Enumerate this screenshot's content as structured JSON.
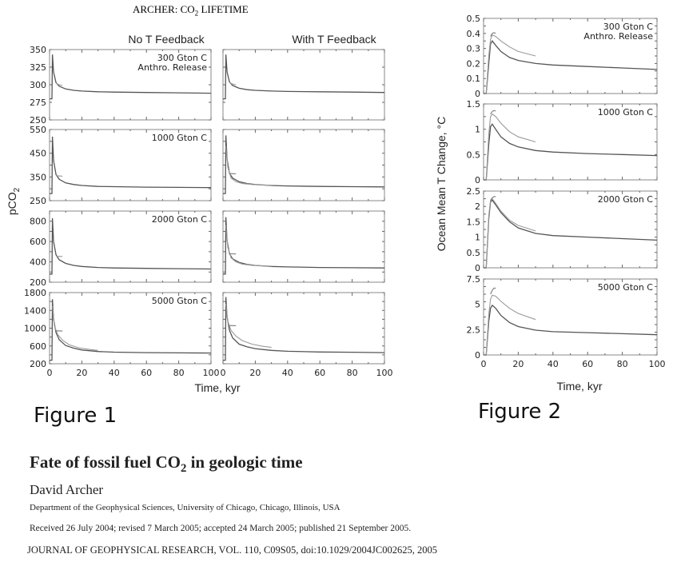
{
  "header": {
    "title_pre": "ARCHER: CO",
    "title_sub": "2",
    "title_post": " LIFETIME"
  },
  "figure1": {
    "label": "Figure 1",
    "col_titles": [
      "No T Feedback",
      "With T Feedback"
    ],
    "ylabel_pre": "pCO",
    "ylabel_sub": "2",
    "xlabel": "Time, kyr"
  },
  "figure2": {
    "label": "Figure 2",
    "ylabel": "Ocean Mean T Change, °C",
    "xlabel": "Time, kyr"
  },
  "chart_data": [
    {
      "type": "line",
      "title": "No T Feedback",
      "xlabel": "Time, kyr",
      "ylabel": "pCO2",
      "xlim": [
        0,
        100
      ],
      "xticks": [
        "0",
        "20",
        "40",
        "60",
        "80",
        "100"
      ],
      "panels": [
        {
          "label": [
            "300 Gton C",
            "Anthro. Release"
          ],
          "ylim": [
            250,
            350
          ],
          "yticks": [
            "250",
            "275",
            "300",
            "325",
            "350"
          ],
          "series": [
            {
              "x": [
                0,
                1.5,
                1.8,
                2.5,
                4,
                6,
                10,
                15,
                20,
                30,
                40,
                60,
                80,
                100
              ],
              "y": [
                280,
                280,
                343,
                318,
                303,
                298,
                294,
                292,
                291,
                290,
                289.5,
                289,
                288.5,
                288
              ]
            },
            {
              "x": [
                4,
                5,
                6,
                8
              ],
              "y": [
                302,
                301,
                300,
                299
              ]
            }
          ]
        },
        {
          "label": [
            "1000 Gton C"
          ],
          "ylim": [
            250,
            550
          ],
          "yticks": [
            "250",
            "350",
            "450",
            "550"
          ],
          "series": [
            {
              "x": [
                0,
                1.5,
                1.8,
                2.5,
                4,
                6,
                10,
                15,
                20,
                30,
                40,
                60,
                80,
                100
              ],
              "y": [
                280,
                280,
                520,
                420,
                360,
                340,
                325,
                318,
                314,
                310,
                309,
                307,
                306,
                305
              ]
            },
            {
              "x": [
                4,
                6,
                8
              ],
              "y": [
                355,
                354,
                353
              ]
            }
          ]
        },
        {
          "label": [
            "2000 Gton C"
          ],
          "ylim": [
            200,
            900
          ],
          "yticks": [
            "200",
            "400",
            "600",
            "800"
          ],
          "series": [
            {
              "x": [
                0,
                1.5,
                1.8,
                2.5,
                4,
                6,
                10,
                15,
                20,
                30,
                40,
                60,
                80,
                100
              ],
              "y": [
                280,
                280,
                830,
                600,
                470,
                420,
                385,
                365,
                355,
                345,
                340,
                336,
                333,
                330
              ]
            },
            {
              "x": [
                4,
                6,
                8
              ],
              "y": [
                455,
                454,
                453
              ]
            }
          ]
        },
        {
          "label": [
            "5000 Gton C"
          ],
          "ylim": [
            200,
            1800
          ],
          "yticks": [
            "200",
            "600",
            "1000",
            "1400",
            "1800"
          ],
          "series": [
            {
              "x": [
                0,
                1.5,
                1.8,
                2.5,
                4,
                6,
                10,
                15,
                20,
                30,
                40,
                60,
                80,
                100
              ],
              "y": [
                280,
                280,
                1650,
                1200,
                900,
                740,
                610,
                550,
                510,
                475,
                460,
                450,
                445,
                440
              ]
            },
            {
              "x": [
                1.8,
                3,
                5,
                8,
                12,
                18,
                25,
                30
              ],
              "y": [
                1500,
                1050,
                860,
                730,
                630,
                560,
                520,
                500
              ]
            },
            {
              "x": [
                4,
                6,
                8
              ],
              "y": [
                940,
                938,
                936
              ]
            }
          ]
        }
      ]
    },
    {
      "type": "line",
      "title": "With T Feedback",
      "xlabel": "Time, kyr",
      "xlim": [
        0,
        100
      ],
      "xticks": [
        "0",
        "20",
        "40",
        "60",
        "80",
        "100"
      ],
      "panels": [
        {
          "ylim": [
            250,
            350
          ],
          "series": [
            {
              "x": [
                0,
                1.5,
                1.8,
                2.5,
                4,
                6,
                10,
                15,
                20,
                30,
                40,
                60,
                80,
                100
              ],
              "y": [
                280,
                280,
                343,
                318,
                304,
                299,
                295,
                293,
                292,
                291,
                290.5,
                290,
                289.5,
                289
              ]
            },
            {
              "x": [
                4,
                5,
                6,
                8
              ],
              "y": [
                303,
                302,
                301,
                300
              ]
            }
          ]
        },
        {
          "ylim": [
            250,
            550
          ],
          "series": [
            {
              "x": [
                0,
                1.5,
                1.8,
                2.5,
                4,
                6,
                10,
                15,
                20,
                30,
                40,
                60,
                80,
                100
              ],
              "y": [
                280,
                280,
                525,
                425,
                365,
                345,
                330,
                322,
                318,
                314,
                312,
                310,
                309,
                308
              ]
            },
            {
              "x": [
                1.8,
                3,
                5,
                8,
                12,
                18,
                25,
                30
              ],
              "y": [
                480,
                390,
                345,
                330,
                322,
                318,
                316,
                315
              ]
            },
            {
              "x": [
                4,
                6,
                8
              ],
              "y": [
                365,
                364,
                363
              ]
            }
          ]
        },
        {
          "ylim": [
            200,
            900
          ],
          "series": [
            {
              "x": [
                0,
                1.5,
                1.8,
                2.5,
                4,
                6,
                10,
                15,
                20,
                30,
                40,
                60,
                80,
                100
              ],
              "y": [
                280,
                280,
                840,
                610,
                480,
                430,
                395,
                375,
                365,
                355,
                350,
                345,
                342,
                340
              ]
            },
            {
              "x": [
                1.8,
                3,
                5,
                8,
                12,
                18,
                25,
                30
              ],
              "y": [
                760,
                540,
                440,
                400,
                378,
                366,
                360,
                358
              ]
            },
            {
              "x": [
                4,
                6,
                8
              ],
              "y": [
                480,
                479,
                478
              ]
            }
          ]
        },
        {
          "ylim": [
            200,
            1800
          ],
          "series": [
            {
              "x": [
                0,
                1.5,
                1.8,
                2.5,
                4,
                6,
                10,
                15,
                20,
                30,
                40,
                60,
                80,
                100
              ],
              "y": [
                280,
                280,
                1700,
                1250,
                950,
                780,
                640,
                580,
                540,
                500,
                480,
                465,
                458,
                450
              ]
            },
            {
              "x": [
                1.8,
                3,
                5,
                8,
                12,
                18,
                25,
                30
              ],
              "y": [
                1550,
                1150,
                950,
                820,
                720,
                640,
                590,
                570
              ]
            },
            {
              "x": [
                4,
                6,
                8
              ],
              "y": [
                1060,
                1058,
                1056
              ]
            }
          ]
        }
      ]
    },
    {
      "type": "line",
      "xlabel": "Time, kyr",
      "ylabel": "Ocean Mean T Change, °C",
      "xlim": [
        0,
        100
      ],
      "xticks": [
        "0",
        "20",
        "40",
        "60",
        "80",
        "100"
      ],
      "panels": [
        {
          "label": [
            "300 Gton C",
            "Anthro. Release"
          ],
          "ylim": [
            0,
            0.5
          ],
          "yticks": [
            "0",
            "0.1",
            "0.2",
            "0.3",
            "0.4",
            "0.5"
          ],
          "series": [
            {
              "x": [
                0,
                1.5,
                3,
                4,
                5,
                7,
                10,
                15,
                20,
                30,
                40,
                60,
                80,
                100
              ],
              "y": [
                0,
                0,
                0.2,
                0.33,
                0.35,
                0.32,
                0.28,
                0.24,
                0.22,
                0.2,
                0.19,
                0.18,
                0.17,
                0.16
              ]
            },
            {
              "x": [
                1.5,
                3,
                4,
                5,
                7,
                10,
                15,
                20,
                30
              ],
              "y": [
                0,
                0.25,
                0.36,
                0.39,
                0.38,
                0.35,
                0.31,
                0.28,
                0.25
              ]
            },
            {
              "x": [
                4,
                5,
                6,
                7
              ],
              "y": [
                0.38,
                0.4,
                0.405,
                0.4
              ]
            }
          ]
        },
        {
          "label": [
            "1000 Gton C"
          ],
          "ylim": [
            0,
            1.5
          ],
          "yticks": [
            "0",
            "0.5",
            "1",
            "1.5"
          ],
          "series": [
            {
              "x": [
                0,
                1.5,
                3,
                4,
                5,
                7,
                10,
                15,
                20,
                30,
                40,
                60,
                80,
                100
              ],
              "y": [
                0,
                0,
                0.7,
                1.05,
                1.1,
                1.0,
                0.85,
                0.72,
                0.65,
                0.58,
                0.55,
                0.52,
                0.5,
                0.48
              ]
            },
            {
              "x": [
                1.5,
                3,
                4,
                5,
                7,
                10,
                15,
                20,
                30
              ],
              "y": [
                0,
                0.9,
                1.25,
                1.3,
                1.25,
                1.12,
                0.95,
                0.85,
                0.75
              ]
            },
            {
              "x": [
                4,
                5,
                6,
                7
              ],
              "y": [
                1.3,
                1.35,
                1.37,
                1.36
              ]
            }
          ]
        },
        {
          "label": [
            "2000 Gton C"
          ],
          "ylim": [
            0,
            2.5
          ],
          "yticks": [
            "0",
            "0.5",
            "1",
            "1.5",
            "2",
            "2.5"
          ],
          "series": [
            {
              "x": [
                0,
                1.5,
                3,
                4,
                5,
                7,
                10,
                15,
                20,
                30,
                40,
                60,
                80,
                100
              ],
              "y": [
                0,
                0,
                1.6,
                2.15,
                2.2,
                2.05,
                1.8,
                1.5,
                1.3,
                1.12,
                1.05,
                1.0,
                0.95,
                0.9
              ]
            },
            {
              "x": [
                1.5,
                3,
                4,
                5,
                7,
                10,
                15,
                20,
                30
              ],
              "y": [
                0,
                1.7,
                2.2,
                2.25,
                2.1,
                1.85,
                1.55,
                1.38,
                1.2
              ]
            },
            {
              "x": [
                4,
                5,
                6,
                7
              ],
              "y": [
                2.2,
                2.28,
                2.32,
                2.32
              ]
            }
          ]
        },
        {
          "label": [
            "5000 Gton C"
          ],
          "ylim": [
            0,
            7.5
          ],
          "yticks": [
            "0",
            "2.5",
            "5",
            "7.5"
          ],
          "series": [
            {
              "x": [
                0,
                1.5,
                3,
                4,
                5,
                7,
                10,
                15,
                20,
                30,
                40,
                60,
                80,
                100
              ],
              "y": [
                0,
                0,
                3.3,
                4.6,
                4.9,
                4.6,
                3.9,
                3.2,
                2.8,
                2.45,
                2.3,
                2.2,
                2.1,
                2.0
              ]
            },
            {
              "x": [
                1.5,
                3,
                4,
                5,
                7,
                10,
                15,
                20,
                30
              ],
              "y": [
                0,
                4.0,
                5.5,
                5.9,
                5.8,
                5.3,
                4.6,
                4.1,
                3.5
              ]
            },
            {
              "x": [
                4,
                5,
                6,
                7
              ],
              "y": [
                6.0,
                6.4,
                6.6,
                6.6
              ]
            }
          ]
        }
      ]
    }
  ],
  "paper": {
    "title_pre": "Fate of fossil fuel CO",
    "title_sub": "2",
    "title_post": " in geologic time",
    "author": "David Archer",
    "affiliation": "Department of the Geophysical Sciences, University of Chicago, Chicago, Illinois, USA",
    "dates": "Received 26 July 2004; revised 7 March 2005; accepted 24 March 2005; published 21 September 2005.",
    "journal": "JOURNAL OF GEOPHYSICAL RESEARCH, VOL. 110, C09S05, doi:10.1029/2004JC002625, 2005"
  }
}
